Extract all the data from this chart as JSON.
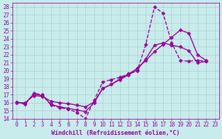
{
  "xlabel": "Windchill (Refroidissement éolien,°C)",
  "background_color": "#c8ecec",
  "grid_color": "#b0cccc",
  "line_color": "#990099",
  "xlim": [
    -0.5,
    23.5
  ],
  "ylim": [
    14,
    28.5
  ],
  "xticks": [
    0,
    1,
    2,
    3,
    4,
    5,
    6,
    7,
    8,
    9,
    10,
    11,
    12,
    13,
    14,
    15,
    16,
    17,
    18,
    19,
    20,
    21,
    22,
    23
  ],
  "yticks": [
    14,
    15,
    16,
    17,
    18,
    19,
    20,
    21,
    22,
    23,
    24,
    25,
    26,
    27,
    28
  ],
  "series": [
    {
      "x": [
        0,
        1,
        2,
        3,
        4,
        5,
        6,
        7,
        8,
        9,
        10,
        11,
        12,
        13,
        14,
        15,
        16,
        17,
        18,
        19,
        20,
        21,
        22
      ],
      "y": [
        16.1,
        15.8,
        17.2,
        17.0,
        15.7,
        15.4,
        15.2,
        14.8,
        14.0,
        16.3,
        18.6,
        18.9,
        19.2,
        19.6,
        20.0,
        23.3,
        28.0,
        27.2,
        23.5,
        21.3,
        21.2,
        21.3,
        21.2
      ],
      "linestyle": "--"
    },
    {
      "x": [
        0,
        1,
        2,
        3,
        4,
        5,
        6,
        7,
        8,
        9,
        10,
        11,
        12,
        13,
        14,
        15,
        16,
        17,
        18,
        19,
        20,
        21,
        22
      ],
      "y": [
        16.1,
        15.9,
        17.1,
        16.9,
        15.8,
        15.5,
        15.3,
        15.1,
        14.9,
        16.0,
        17.8,
        18.3,
        18.9,
        19.5,
        20.1,
        21.5,
        23.2,
        23.5,
        23.2,
        23.0,
        22.5,
        21.0,
        21.2
      ],
      "linestyle": "-"
    },
    {
      "x": [
        0,
        1,
        2,
        3,
        4,
        5,
        6,
        7,
        8,
        9,
        10,
        11,
        12,
        13,
        14,
        15,
        16,
        17,
        18,
        19,
        20,
        21,
        22
      ],
      "y": [
        16.0,
        16.0,
        16.9,
        16.8,
        16.2,
        16.0,
        15.9,
        15.7,
        15.5,
        16.1,
        17.8,
        18.3,
        19.0,
        19.6,
        20.3,
        21.3,
        22.4,
        23.3,
        24.2,
        25.1,
        24.7,
        22.0,
        21.3
      ],
      "linestyle": "-"
    }
  ],
  "marker": "D",
  "markersize": 2.5,
  "linewidth": 1.0,
  "tick_fontsize": 5.5,
  "xlabel_fontsize": 6.0
}
